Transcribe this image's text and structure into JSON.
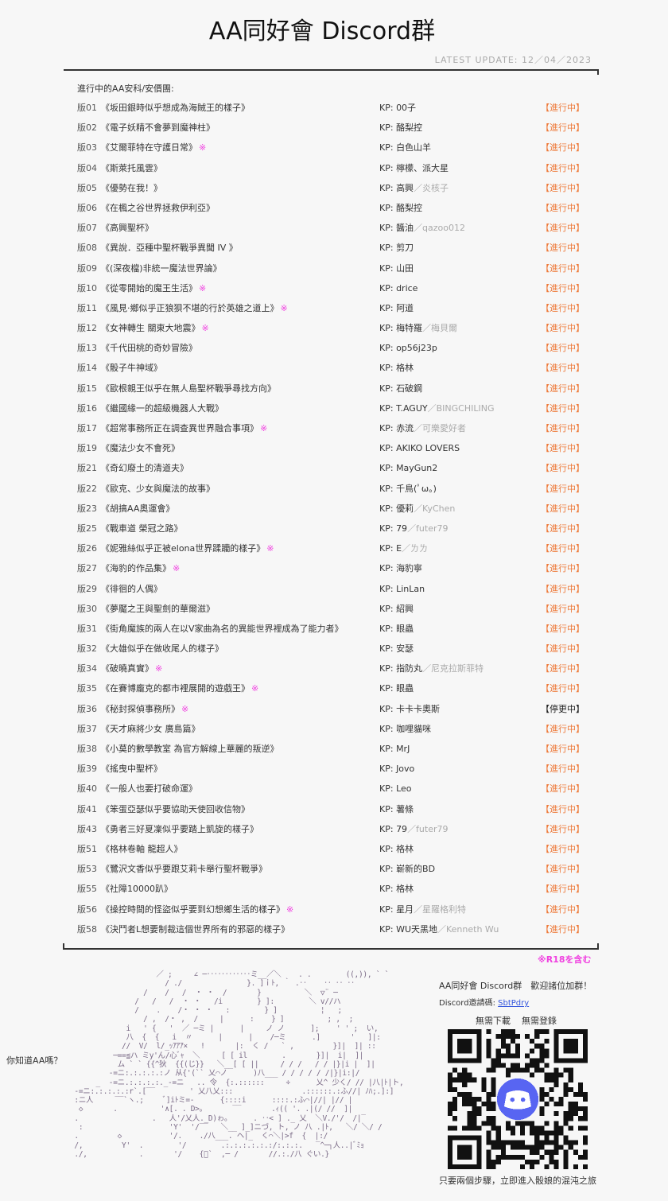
{
  "header": {
    "title": "AA同好會 Discord群",
    "update": "LATEST UPDATE: 12／04／2023"
  },
  "list_heading": "進行中的AA安科/安價團:",
  "colors": {
    "active": "#ee7a3a",
    "paused": "#222222",
    "r18_mark": "#f040e0",
    "link": "#3355dd"
  },
  "rows": [
    {
      "num": "版01",
      "title": "《坂田銀時似乎想成為海賊王的樣子》",
      "r18": "",
      "kp": "00子",
      "kp2": "",
      "status": "【進行中】",
      "paused": false
    },
    {
      "num": "版02",
      "title": "《電子妖精不會夢到魔神柱》",
      "r18": "",
      "kp": "酪梨控",
      "kp2": "",
      "status": "【進行中】",
      "paused": false
    },
    {
      "num": "版03",
      "title": "《艾爾菲特在守護日常》",
      "r18": "※",
      "kp": "白色山羊",
      "kp2": "",
      "status": "【進行中】",
      "paused": false
    },
    {
      "num": "版04",
      "title": "《斯萊托風雲》",
      "r18": "",
      "kp": "檸檬、派大星",
      "kp2": "",
      "status": "【進行中】",
      "paused": false
    },
    {
      "num": "版05",
      "title": "《優勢在我！》",
      "r18": "",
      "kp": "高興",
      "kp2": "／炎核子",
      "status": "【進行中】",
      "paused": false
    },
    {
      "num": "版06",
      "title": "《在楓之谷世界拯救伊利亞》",
      "r18": "",
      "kp": "酪梨控",
      "kp2": "",
      "status": "【進行中】",
      "paused": false
    },
    {
      "num": "版07",
      "title": "《高興聖杯》",
      "r18": "",
      "kp": "醬油",
      "kp2": "／qazoo012",
      "status": "【進行中】",
      "paused": false
    },
    {
      "num": "版08",
      "title": "《異說．亞種中聖杯戰爭異聞 IV 》",
      "r18": "",
      "kp": "剪刀",
      "kp2": "",
      "status": "【進行中】",
      "paused": false
    },
    {
      "num": "版09",
      "title": "《(深夜檔)非統一魔法世界論》",
      "r18": "",
      "kp": "山田",
      "kp2": "",
      "status": "【進行中】",
      "paused": false
    },
    {
      "num": "版10",
      "title": "《從零開始的魔王生活》",
      "r18": "※",
      "kp": "drice",
      "kp2": "",
      "status": "【進行中】",
      "paused": false
    },
    {
      "num": "版11",
      "title": "《風見‧鄉似乎正狼狽不堪的行於英雄之道上》",
      "r18": "※",
      "kp": "阿道",
      "kp2": "",
      "status": "【進行中】",
      "paused": false
    },
    {
      "num": "版12",
      "title": "《女神轉生 關東大地震》",
      "r18": "※",
      "kp": "梅特羅",
      "kp2": "／梅貝爾",
      "status": "【進行中】",
      "paused": false
    },
    {
      "num": "版13",
      "title": "《千代田桃的奇妙冒險》",
      "r18": "",
      "kp": "op56j23p",
      "kp2": "",
      "status": "【進行中】",
      "paused": false
    },
    {
      "num": "版14",
      "title": "《骰子牛神域》",
      "r18": "",
      "kp": "格林",
      "kp2": "",
      "status": "【進行中】",
      "paused": false
    },
    {
      "num": "版15",
      "title": "《歐根親王似乎在無人島聖杯戰爭尋找方向》",
      "r18": "",
      "kp": "石破鋼",
      "kp2": "",
      "status": "【進行中】",
      "paused": false
    },
    {
      "num": "版16",
      "title": "《繼國緣一的超級機器人大戰》",
      "r18": "",
      "kp": "T.AGUY",
      "kp2": "／BINGCHILING",
      "status": "【進行中】",
      "paused": false
    },
    {
      "num": "版17",
      "title": "《超常事務所正在調查異世界融合事項》",
      "r18": "※",
      "kp": "赤流",
      "kp2": "／可樂愛好者",
      "status": "【進行中】",
      "paused": false
    },
    {
      "num": "版19",
      "title": "《魔法少女不會死》",
      "r18": "",
      "kp": "AKIKO LOVERS",
      "kp2": "",
      "status": "【進行中】",
      "paused": false
    },
    {
      "num": "版21",
      "title": "《奇幻廢土的清道夫》",
      "r18": "",
      "kp": "MayGun2",
      "kp2": "",
      "status": "【進行中】",
      "paused": false
    },
    {
      "num": "版22",
      "title": "《歐克、少女與魔法的故事》",
      "r18": "",
      "kp": "千鳥(ﾟω。)",
      "kp2": "",
      "status": "【進行中】",
      "paused": false
    },
    {
      "num": "版23",
      "title": "《胡搞AA奧運會》",
      "r18": "",
      "kp": "優莉",
      "kp2": "／KyChen",
      "status": "【進行中】",
      "paused": false
    },
    {
      "num": "版25",
      "title": "《戰車道 榮冠之路》",
      "r18": "",
      "kp": "79",
      "kp2": "／futer79",
      "status": "【進行中】",
      "paused": false
    },
    {
      "num": "版26",
      "title": "《妮雅絲似乎正被elona世界蹂躪的樣子》",
      "r18": "※",
      "kp": "E",
      "kp2": "／ㄌㄌ",
      "status": "【進行中】",
      "paused": false
    },
    {
      "num": "版27",
      "title": "《海豹的作品集》",
      "r18": "※",
      "kp": "海豹寧",
      "kp2": "",
      "status": "【進行中】",
      "paused": false
    },
    {
      "num": "版29",
      "title": "《徘徊的人偶》",
      "r18": "",
      "kp": "LinLan",
      "kp2": "",
      "status": "【進行中】",
      "paused": false
    },
    {
      "num": "版30",
      "title": "《夢魘之王與聖劍的華爾滋》",
      "r18": "",
      "kp": "紹興",
      "kp2": "",
      "status": "【進行中】",
      "paused": false
    },
    {
      "num": "版31",
      "title": "《街角魔族的兩人在以V家曲為名的異能世界裡成為了能力者》",
      "r18": "",
      "kp": "眼蟲",
      "kp2": "",
      "status": "【進行中】",
      "paused": false
    },
    {
      "num": "版32",
      "title": "《大雄似乎在做收尾人的樣子》",
      "r18": "",
      "kp": "安瑟",
      "kp2": "",
      "status": "【進行中】",
      "paused": false
    },
    {
      "num": "版34",
      "title": "《破曉真實》",
      "r18": "※",
      "kp": "指防丸",
      "kp2": "／尼克拉斯菲特",
      "status": "【進行中】",
      "paused": false
    },
    {
      "num": "版35",
      "title": "《在賽博龐克的都市裡展開的遊戲王》",
      "r18": "※",
      "kp": "眼蟲",
      "kp2": "",
      "status": "【進行中】",
      "paused": false
    },
    {
      "num": "版36",
      "title": "《秘封探偵事務所》",
      "r18": "※",
      "kp": "卡卡卡奧斯",
      "kp2": "",
      "status": "【停更中】",
      "paused": true
    },
    {
      "num": "版37",
      "title": "《天才麻將少女 廣島篇》",
      "r18": "",
      "kp": "咖哩貓咪",
      "kp2": "",
      "status": "【進行中】",
      "paused": false
    },
    {
      "num": "版38",
      "title": "《小莫的數學教室 為官方解線上華麗的叛逆》",
      "r18": "",
      "kp": "MrJ",
      "kp2": "",
      "status": "【進行中】",
      "paused": false
    },
    {
      "num": "版39",
      "title": "《搖曳中聖杯》",
      "r18": "",
      "kp": "Jovo",
      "kp2": "",
      "status": "【進行中】",
      "paused": false
    },
    {
      "num": "版40",
      "title": "《一般人也要打破命運》",
      "r18": "",
      "kp": "Leo",
      "kp2": "",
      "status": "【進行中】",
      "paused": false
    },
    {
      "num": "版41",
      "title": "《笨蛋亞瑟似乎要協助天使回收信物》",
      "r18": "",
      "kp": "薯條",
      "kp2": "",
      "status": "【進行中】",
      "paused": false
    },
    {
      "num": "版43",
      "title": "《勇者三好夏凜似乎要踏上凱旋的樣子》",
      "r18": "",
      "kp": "79",
      "kp2": "／futer79",
      "status": "【進行中】",
      "paused": false
    },
    {
      "num": "版51",
      "title": "《格林卷軸 龍超人》",
      "r18": "",
      "kp": "格林",
      "kp2": "",
      "status": "【進行中】",
      "paused": false
    },
    {
      "num": "版53",
      "title": "《鷺沢文香似乎要跟艾莉卡舉行聖杯戰爭》",
      "r18": "",
      "kp": "嶄新的BD",
      "kp2": "",
      "status": "【進行中】",
      "paused": false
    },
    {
      "num": "版55",
      "title": "《社障10000趴》",
      "r18": "",
      "kp": "格林",
      "kp2": "",
      "status": "【進行中】",
      "paused": false
    },
    {
      "num": "版56",
      "title": "《操控時間的怪盜似乎要到幻想鄉生活的樣子》",
      "r18": "※",
      "kp": "星月",
      "kp2": "／星羅格利特",
      "status": "【進行中】",
      "paused": false
    },
    {
      "num": "版58",
      "title": "《決鬥者L想要制裁這個世界所有的邪惡的樣子》",
      "r18": "",
      "kp": "WU天黑地",
      "kp2": "／Kenneth Wu",
      "status": "【進行中】",
      "paused": false
    }
  ],
  "kp_label": "KP: ",
  "r18_note": "※R18を含む",
  "footer": {
    "question": "你知道AA嗎？",
    "welcome": "AA同好會 Discord群　歡迎諸位加群！",
    "invite_label": "Discord邀請碼: ",
    "invite_code": "SbtPdry",
    "no_download": "無需下載",
    "no_register": "無需登錄",
    "steps": "只要兩個步驟，立即進入骰娘的混沌之旅",
    "qr_center_icon": "discord-logo-icon",
    "ascii_art": [
      "                    ／ ;     ∠ ─‥‥‥‥‥‥ミ__／＼    . .        ((,)), ` `",
      "                      / ./               }. ]ｉﾄ, ｀ .‥    ‥ ‥ ‥",
      "                 /    /   /  ・ ・  /       }          ＼  ▽¨ ─",
      "               /   /   /  ・ ・   /i        } ]:        ＼ v//ハ",
      "               /    .    /・ ・ ・   :        } ]          ¦   ;",
      "                 / ,  /・ ,  /     |      :    } ]          ; ,  ;",
      "             i   ' {   '  ／ ─ミ |      |     ノ ノ      ];    ' ' ;  い,",
      "             八  {  {   i  〃      |      |    /─ミ      .]       '   ]|:",
      "            //  V/  l/_ｯｱｱｱ×   !       |:  く /   ` ,         }]|  ]| ::",
      "          ─==≦ハ ミy'ん/心ﾞｬ  ＼     [ [ il        .       }]|  i|  ]|",
      "           ム ` ` {{^狄  {{(じ}}   ＼__[ [ ||     / / /   / / |}|i |  ]|",
      "         -=ニ:.:.:.:.:ノ 从{'(`` 乂⌒ノ      )八___ / / / / / /|}|i:|/",
      "      _  -=ニ.:.:.:.:._-=ニ   .. 令  {:.::::::     ÷      乂^ 少く/ // |八|ﾄ|ト,",
      " -=ニ:.:.:.:.:r`.[‾‾        ' 乂八乂:::                .::::::.:ふ//| ﾉﾊ;.]:]",
      " :ニ人     ‾‾`ヽ.;     ﾞ]iﾄミ=-      {::::i      ::::.:ふ⌒|//| |// |",
      "  ◇       .          '∧[. . D>。      ‾‾       .ｨ(( '. .|(/ //  ]|",
      " .                 .   人'/乂人._D)ゎ。     . ‥< ] ._ 乂  ＼V./'/  /|‾",
      "  :                    'Y'  '/‾‾   ＼__ ]_]ニづ, ト, ノ 八 .|ﾄ,   ＼/ ＼/ /",
      " .         ◇           '/.    ./八___. ヘ|_  く⌒＼|>f  {  |:/",
      " /,         Y'  .        '/        .:.:.:.:.:.:/:.:.:.   ‾^─┐人..|ﾞﾐｮ",
      " ./,            .       '/    {ﾞ`  ,─ /       //.:./八 ぐい.}"
    ]
  }
}
